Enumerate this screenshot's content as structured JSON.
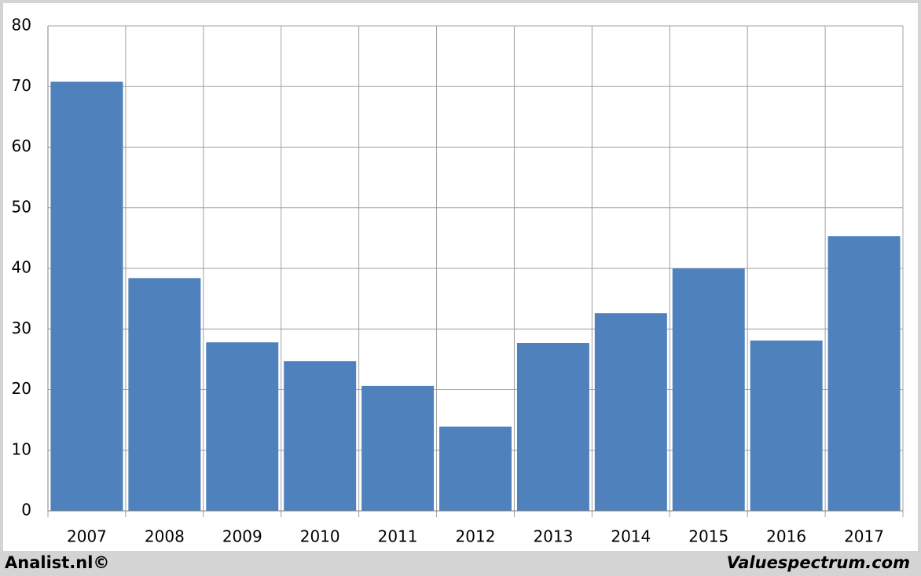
{
  "chart_data": {
    "type": "bar",
    "categories": [
      "2007",
      "2008",
      "2009",
      "2010",
      "2011",
      "2012",
      "2013",
      "2014",
      "2015",
      "2016",
      "2017"
    ],
    "values": [
      70.8,
      38.4,
      27.8,
      24.7,
      20.6,
      13.9,
      27.7,
      32.6,
      40.0,
      28.1,
      45.3
    ],
    "color": "#4f81bd",
    "ylim": [
      0,
      80
    ],
    "yticks": [
      0,
      10,
      20,
      30,
      40,
      50,
      60,
      70,
      80
    ],
    "grid": true,
    "credits": [
      "Analist.nl©",
      "Valuespectrum.com"
    ]
  }
}
